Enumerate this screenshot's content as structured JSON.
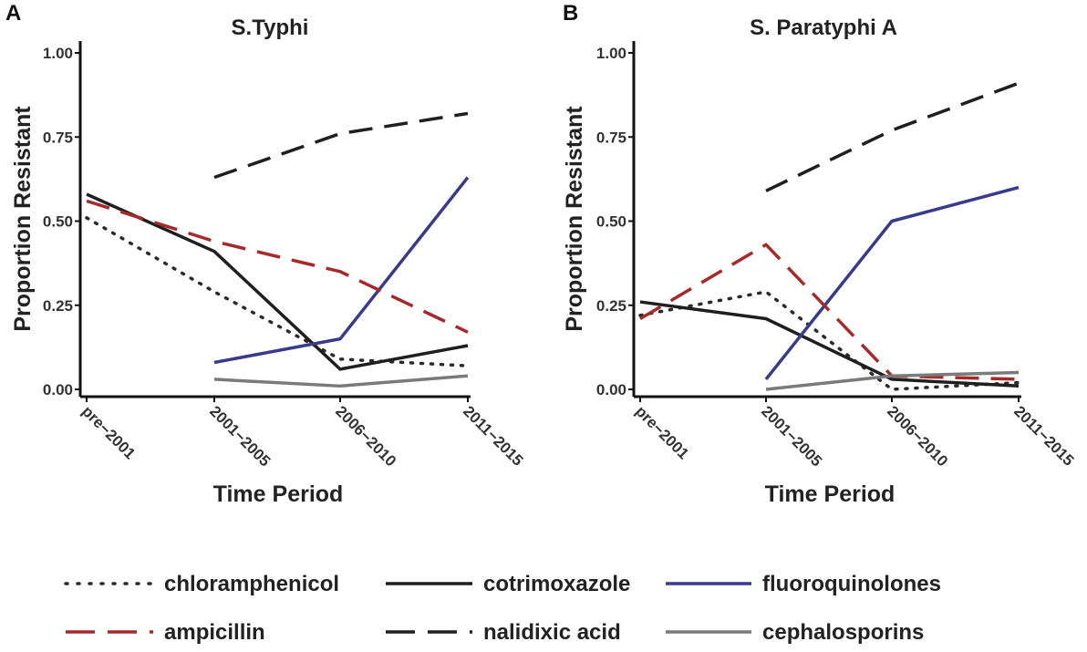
{
  "colors": {
    "chloramphenicol": "#2b2b2b",
    "cotrimoxazole": "#1f1f1f",
    "fluoroquinolones": "#3a3a8c",
    "ampicillin": "#a52a2a",
    "nalidixic_acid": "#1f1f1f",
    "cephalosporins": "#7a7a7a"
  },
  "legend": [
    {
      "key": "chloramphenicol",
      "label": "chloramphenicol",
      "style": "dotted"
    },
    {
      "key": "cotrimoxazole",
      "label": "cotrimoxazole",
      "style": "solid"
    },
    {
      "key": "fluoroquinolones",
      "label": "fluoroquinolones",
      "style": "solid"
    },
    {
      "key": "ampicillin",
      "label": "ampicillin",
      "style": "dashed"
    },
    {
      "key": "nalidixic_acid",
      "label": "nalidixic acid",
      "style": "dashed"
    },
    {
      "key": "cephalosporins",
      "label": "cephalosporins",
      "style": "solid"
    }
  ],
  "chart_data": [
    {
      "type": "line",
      "panel": "A",
      "title": "S.Typhi",
      "xlabel": "Time Period",
      "ylabel": "Proportion Resistant",
      "categories": [
        "pre−2001",
        "2001−2005",
        "2006−2010",
        "2011−2015"
      ],
      "ylim": [
        0,
        1
      ],
      "yticks": [
        "0.00",
        "0.25",
        "0.50",
        "0.75",
        "1.00"
      ],
      "series": [
        {
          "key": "chloramphenicol",
          "name": "chloramphenicol",
          "values": [
            0.51,
            0.29,
            0.09,
            0.07
          ]
        },
        {
          "key": "cotrimoxazole",
          "name": "cotrimoxazole",
          "values": [
            0.58,
            0.41,
            0.06,
            0.13
          ]
        },
        {
          "key": "fluoroquinolones",
          "name": "fluoroquinolones",
          "values": [
            null,
            0.08,
            0.15,
            0.63
          ]
        },
        {
          "key": "ampicillin",
          "name": "ampicillin",
          "values": [
            0.56,
            0.44,
            0.35,
            0.17
          ]
        },
        {
          "key": "nalidixic_acid",
          "name": "nalidixic acid",
          "values": [
            null,
            0.63,
            0.76,
            0.82
          ]
        },
        {
          "key": "cephalosporins",
          "name": "cephalosporins",
          "values": [
            null,
            0.03,
            0.01,
            0.04
          ]
        }
      ]
    },
    {
      "type": "line",
      "panel": "B",
      "title": "S. Paratyphi A",
      "xlabel": "Time Period",
      "ylabel": "Proportion Resistant",
      "categories": [
        "pre−2001",
        "2001−2005",
        "2006−2010",
        "2011−2015"
      ],
      "ylim": [
        0,
        1
      ],
      "yticks": [
        "0.00",
        "0.25",
        "0.50",
        "0.75",
        "1.00"
      ],
      "series": [
        {
          "key": "chloramphenicol",
          "name": "chloramphenicol",
          "values": [
            0.22,
            0.29,
            0.0,
            0.02
          ]
        },
        {
          "key": "cotrimoxazole",
          "name": "cotrimoxazole",
          "values": [
            0.26,
            0.21,
            0.03,
            0.01
          ]
        },
        {
          "key": "fluoroquinolones",
          "name": "fluoroquinolones",
          "values": [
            null,
            0.03,
            0.5,
            0.6
          ]
        },
        {
          "key": "ampicillin",
          "name": "ampicillin",
          "values": [
            0.21,
            0.43,
            0.04,
            0.03
          ]
        },
        {
          "key": "nalidixic_acid",
          "name": "nalidixic acid",
          "values": [
            null,
            0.59,
            0.77,
            0.91
          ]
        },
        {
          "key": "cephalosporins",
          "name": "cephalosporins",
          "values": [
            null,
            0.0,
            0.04,
            0.05
          ]
        }
      ]
    }
  ]
}
